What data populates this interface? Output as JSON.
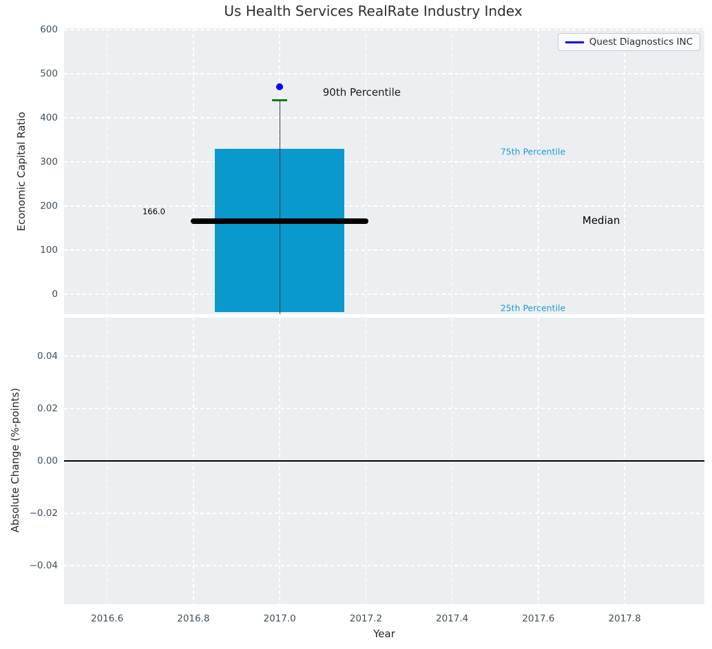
{
  "figure": {
    "background": "#ffffff",
    "plot_background": "#eceff1",
    "grid_color": "#ffffff",
    "tick_color": "#3d4e5c"
  },
  "chart_data": [
    {
      "type": "boxplot",
      "title": "Us Health Services RealRate Industry Index",
      "ylabel": "Economic Capital Ratio",
      "xlim": [
        2016.5,
        2017.985
      ],
      "ylim": [
        -45,
        603
      ],
      "grid": true,
      "legend_position": "upper right",
      "legend": {
        "label": "Quest Diagnostics INC",
        "color": "#0000ee"
      },
      "yticks": [
        {
          "v": 0,
          "label": "0"
        },
        {
          "v": 100,
          "label": "100"
        },
        {
          "v": 200,
          "label": "200"
        },
        {
          "v": 300,
          "label": "300"
        },
        {
          "v": 400,
          "label": "400"
        },
        {
          "v": 500,
          "label": "500"
        },
        {
          "v": 600,
          "label": "600"
        }
      ],
      "xticks": [
        {
          "v": 2016.6,
          "label": "2016.6"
        },
        {
          "v": 2016.8,
          "label": "2016.8"
        },
        {
          "v": 2017.0,
          "label": "2017.0"
        },
        {
          "v": 2017.2,
          "label": "2017.2"
        },
        {
          "v": 2017.4,
          "label": "2017.4"
        },
        {
          "v": 2017.6,
          "label": "2017.6"
        },
        {
          "v": 2017.8,
          "label": "2017.8"
        }
      ],
      "box": {
        "x": 2017.0,
        "width": 0.3,
        "q25": -40,
        "q75": 330,
        "p90": 440,
        "whisker_low": -45,
        "cap_half_width": 0.017,
        "fill": "#0999cd",
        "whisker_color": "#3a3a3a",
        "p90_cap_color": "#008000"
      },
      "median": {
        "value": 166.0,
        "x_start": 2016.8,
        "x_end": 2017.2,
        "color": "#000000"
      },
      "company_point": {
        "name": "Quest Diagnostics INC",
        "x": 2017.0,
        "y": 470,
        "color": "#0000ff"
      },
      "annotations": [
        {
          "text": "166.0",
          "x": 2016.682,
          "y": 187,
          "color": "#000000",
          "size": "tiny"
        },
        {
          "text": "90th Percentile",
          "x": 2017.1,
          "y": 458,
          "color": "#1a1a1a",
          "size": "large"
        },
        {
          "text": "75th Percentile",
          "x": 2017.512,
          "y": 324,
          "color": "#1f9acc",
          "size": "small"
        },
        {
          "text": "Median",
          "x": 2017.702,
          "y": 167,
          "color": "#000000",
          "size": "large"
        },
        {
          "text": "25th Percentile",
          "x": 2017.512,
          "y": -31,
          "color": "#1f9acc",
          "size": "small"
        }
      ]
    },
    {
      "type": "line",
      "xlabel": "Year",
      "ylabel": "Absolute Change (%-points)",
      "xlim": [
        2016.5,
        2017.985
      ],
      "ylim": [
        -0.0547,
        0.0547
      ],
      "grid": true,
      "series": [],
      "zero_line": {
        "y": 0.0,
        "color": "#000000"
      },
      "yticks": [
        {
          "v": 0.04,
          "label": "0.04"
        },
        {
          "v": 0.02,
          "label": "0.02"
        },
        {
          "v": 0.0,
          "label": "0.00"
        },
        {
          "v": -0.02,
          "label": "−0.02"
        },
        {
          "v": -0.04,
          "label": "−0.04"
        }
      ],
      "xticks": [
        {
          "v": 2016.6,
          "label": "2016.6"
        },
        {
          "v": 2016.8,
          "label": "2016.8"
        },
        {
          "v": 2017.0,
          "label": "2017.0"
        },
        {
          "v": 2017.2,
          "label": "2017.2"
        },
        {
          "v": 2017.4,
          "label": "2017.4"
        },
        {
          "v": 2017.6,
          "label": "2017.6"
        },
        {
          "v": 2017.8,
          "label": "2017.8"
        }
      ]
    }
  ]
}
